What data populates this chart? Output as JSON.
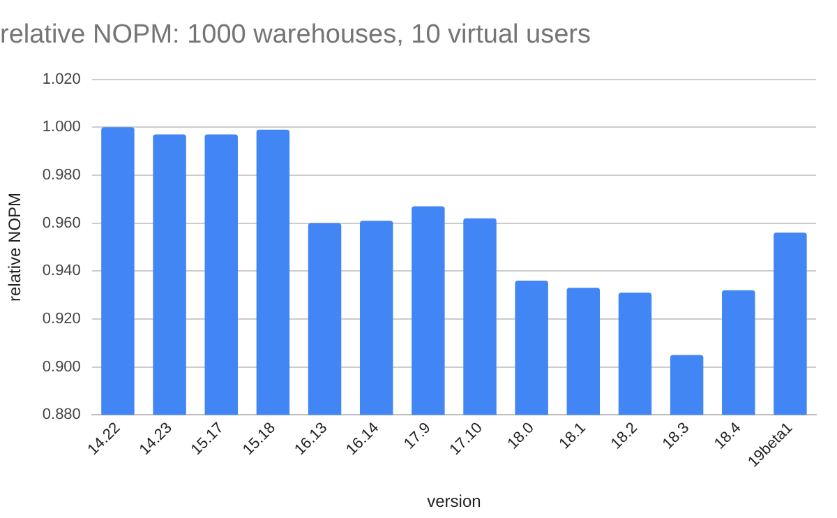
{
  "chart_data": {
    "type": "bar",
    "title": "relative NOPM: 1000 warehouses, 10 virtual users",
    "xlabel": "version",
    "ylabel": "relative NOPM",
    "categories": [
      "14.22",
      "14.23",
      "15.17",
      "15.18",
      "16.13",
      "16.14",
      "17.9",
      "17.10",
      "18.0",
      "18.1",
      "18.2",
      "18.3",
      "18.4",
      "19beta1"
    ],
    "values": [
      1.0,
      0.997,
      0.997,
      0.999,
      0.96,
      0.961,
      0.967,
      0.962,
      0.936,
      0.933,
      0.931,
      0.905,
      0.932,
      0.956
    ],
    "color": "#4285f4",
    "ylim": [
      0.88,
      1.02
    ],
    "yticks": [
      {
        "value": 0.88,
        "label": "0.880"
      },
      {
        "value": 0.9,
        "label": "0.900"
      },
      {
        "value": 0.92,
        "label": "0.920"
      },
      {
        "value": 0.94,
        "label": "0.940"
      },
      {
        "value": 0.96,
        "label": "0.960"
      },
      {
        "value": 0.98,
        "label": "0.980"
      },
      {
        "value": 1.0,
        "label": "1.000"
      },
      {
        "value": 1.02,
        "label": "1.020"
      }
    ],
    "grid": "y",
    "legend": false
  }
}
